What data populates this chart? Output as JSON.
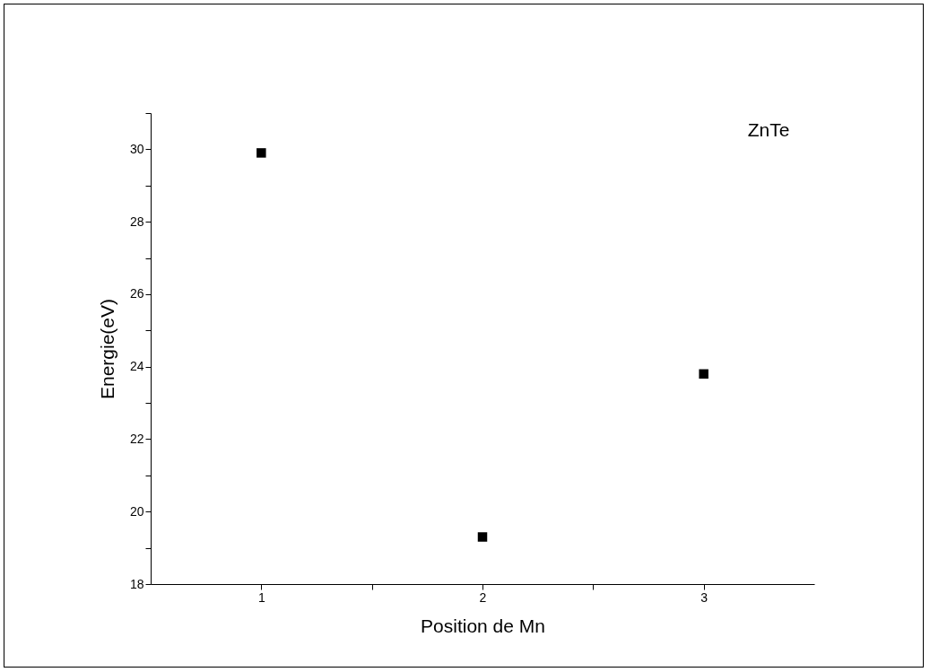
{
  "chart_data": {
    "type": "scatter",
    "x": [
      1,
      2,
      3
    ],
    "values": [
      29.9,
      19.3,
      23.8
    ],
    "color": "#000000",
    "marker": "square",
    "xlabel": "Position de Mn",
    "ylabel": "Energie(eV)",
    "xlim": [
      0.5,
      3.5
    ],
    "xticks": [
      1,
      {
        "value": 1.5,
        "label": null
      },
      2,
      {
        "value": 2.5,
        "label": null
      },
      3
    ],
    "ylim": [
      18,
      31
    ],
    "yticks": [
      18,
      {
        "value": 19,
        "label": null
      },
      20,
      {
        "value": 21,
        "label": null
      },
      22,
      {
        "value": 23,
        "label": null
      },
      24,
      {
        "value": 25,
        "label": null
      },
      26,
      {
        "value": 27,
        "label": null
      },
      28,
      {
        "value": 29,
        "label": null
      },
      30,
      {
        "value": 31,
        "label": null
      }
    ],
    "annotations": [
      "ZnTe"
    ],
    "grid": false
  }
}
